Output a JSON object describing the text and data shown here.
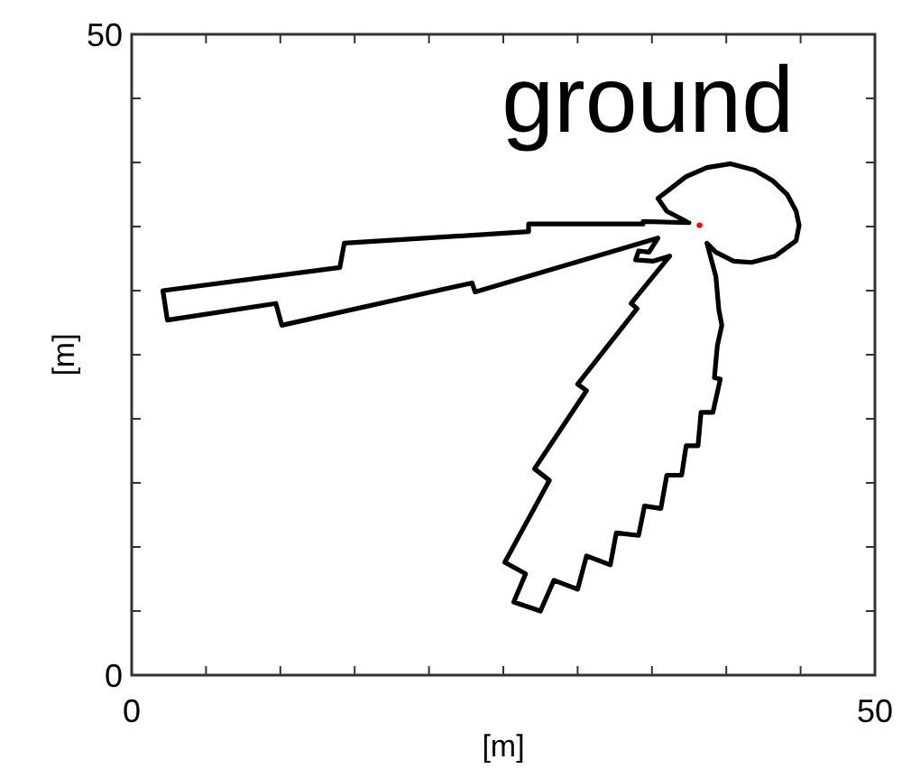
{
  "chart_data": {
    "type": "line",
    "xlabel": "[m]",
    "ylabel": "[m]",
    "annotations": [
      "ground"
    ],
    "xlim": [
      0,
      50
    ],
    "ylim": [
      0,
      50
    ],
    "xticks": [
      0,
      {
        "value": 5,
        "label": null
      },
      {
        "value": 10,
        "label": null
      },
      {
        "value": 15,
        "label": null
      },
      {
        "value": 20,
        "label": null
      },
      {
        "value": 25,
        "label": null
      },
      {
        "value": 30,
        "label": null
      },
      {
        "value": 35,
        "label": null
      },
      {
        "value": 40,
        "label": null
      },
      {
        "value": 45,
        "label": null
      },
      50
    ],
    "yticks": [
      0,
      {
        "value": 5,
        "label": null
      },
      {
        "value": 10,
        "label": null
      },
      {
        "value": 15,
        "label": null
      },
      {
        "value": 20,
        "label": null
      },
      {
        "value": 25,
        "label": null
      },
      {
        "value": 30,
        "label": null
      },
      {
        "value": 35,
        "label": null
      },
      {
        "value": 40,
        "label": null
      },
      {
        "value": 45,
        "label": null
      },
      50
    ],
    "series": [
      {
        "color": "#000000",
        "x": [
          37.5,
          34.4,
          34.4,
          26.7,
          26.7,
          14.3,
          14.0,
          2.1,
          2.4,
          9.7,
          10.1,
          22.9,
          23.1,
          35.4,
          34.8,
          34.1,
          33.9,
          35.1,
          36.2,
          33.6,
          34.0,
          30.0,
          30.6,
          27.1,
          28.1,
          25.1,
          26.5,
          25.7,
          27.5,
          28.4,
          30.0,
          30.6,
          32.2,
          32.6,
          34.1,
          34.5,
          35.6,
          36.0,
          37.0,
          37.3,
          38.1,
          38.3,
          39.1,
          39.6,
          39.2,
          39.4,
          39.7,
          39.5,
          39.3,
          38.7,
          39.3,
          40.5,
          41.7,
          43.3,
          44.7,
          44.9,
          44.7,
          44.1,
          43.1,
          41.9,
          40.3,
          38.7,
          37.3,
          36.3,
          35.4,
          36.0,
          37.3
        ],
        "values": [
          35.3,
          35.4,
          35.2,
          35.2,
          34.6,
          33.7,
          31.8,
          30.0,
          27.7,
          29.0,
          27.3,
          30.6,
          29.9,
          34.1,
          33.0,
          33.1,
          32.4,
          32.3,
          32.7,
          29.0,
          28.6,
          22.7,
          22.2,
          16.1,
          15.2,
          8.8,
          7.9,
          5.7,
          5.0,
          7.4,
          6.7,
          9.3,
          8.6,
          11.1,
          10.9,
          13.2,
          13.0,
          15.6,
          15.6,
          17.9,
          17.9,
          20.5,
          20.5,
          23.1,
          23.2,
          25.7,
          27.3,
          28.5,
          31.1,
          33.7,
          33.0,
          32.3,
          32.2,
          32.7,
          33.9,
          35.1,
          36.2,
          37.5,
          38.6,
          39.4,
          39.9,
          39.6,
          38.9,
          38.0,
          37.2,
          36.2,
          35.4
        ]
      },
      {
        "type": "scatter",
        "color": "#ff0000",
        "marker": "circle",
        "x": [
          38.2
        ],
        "values": [
          35.1
        ]
      }
    ]
  }
}
